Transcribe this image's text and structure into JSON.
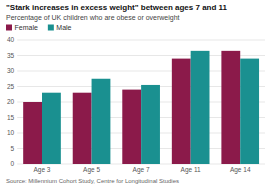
{
  "chart_data": {
    "type": "bar",
    "title": "\"Stark increases in excess weight\" between ages 7 and 11",
    "subtitle": "Percentage of UK children who are obese or overweight",
    "source": "Source: Millennium Cohort Study, Centre for Longitudinal Studies",
    "categories": [
      "Age 3",
      "Age 5",
      "Age 7",
      "Age 11",
      "Age 14"
    ],
    "series": [
      {
        "name": "Female",
        "color": "#8B1A4A",
        "values": [
          20,
          23,
          24,
          34,
          36.5
        ]
      },
      {
        "name": "Male",
        "color": "#1a9090",
        "values": [
          23,
          27.5,
          25.5,
          36.5,
          34
        ]
      }
    ],
    "ylim": [
      0,
      40
    ],
    "yticks": [
      0,
      5,
      10,
      15,
      20,
      25,
      30,
      35,
      40
    ],
    "grid": true,
    "legend": "top"
  }
}
